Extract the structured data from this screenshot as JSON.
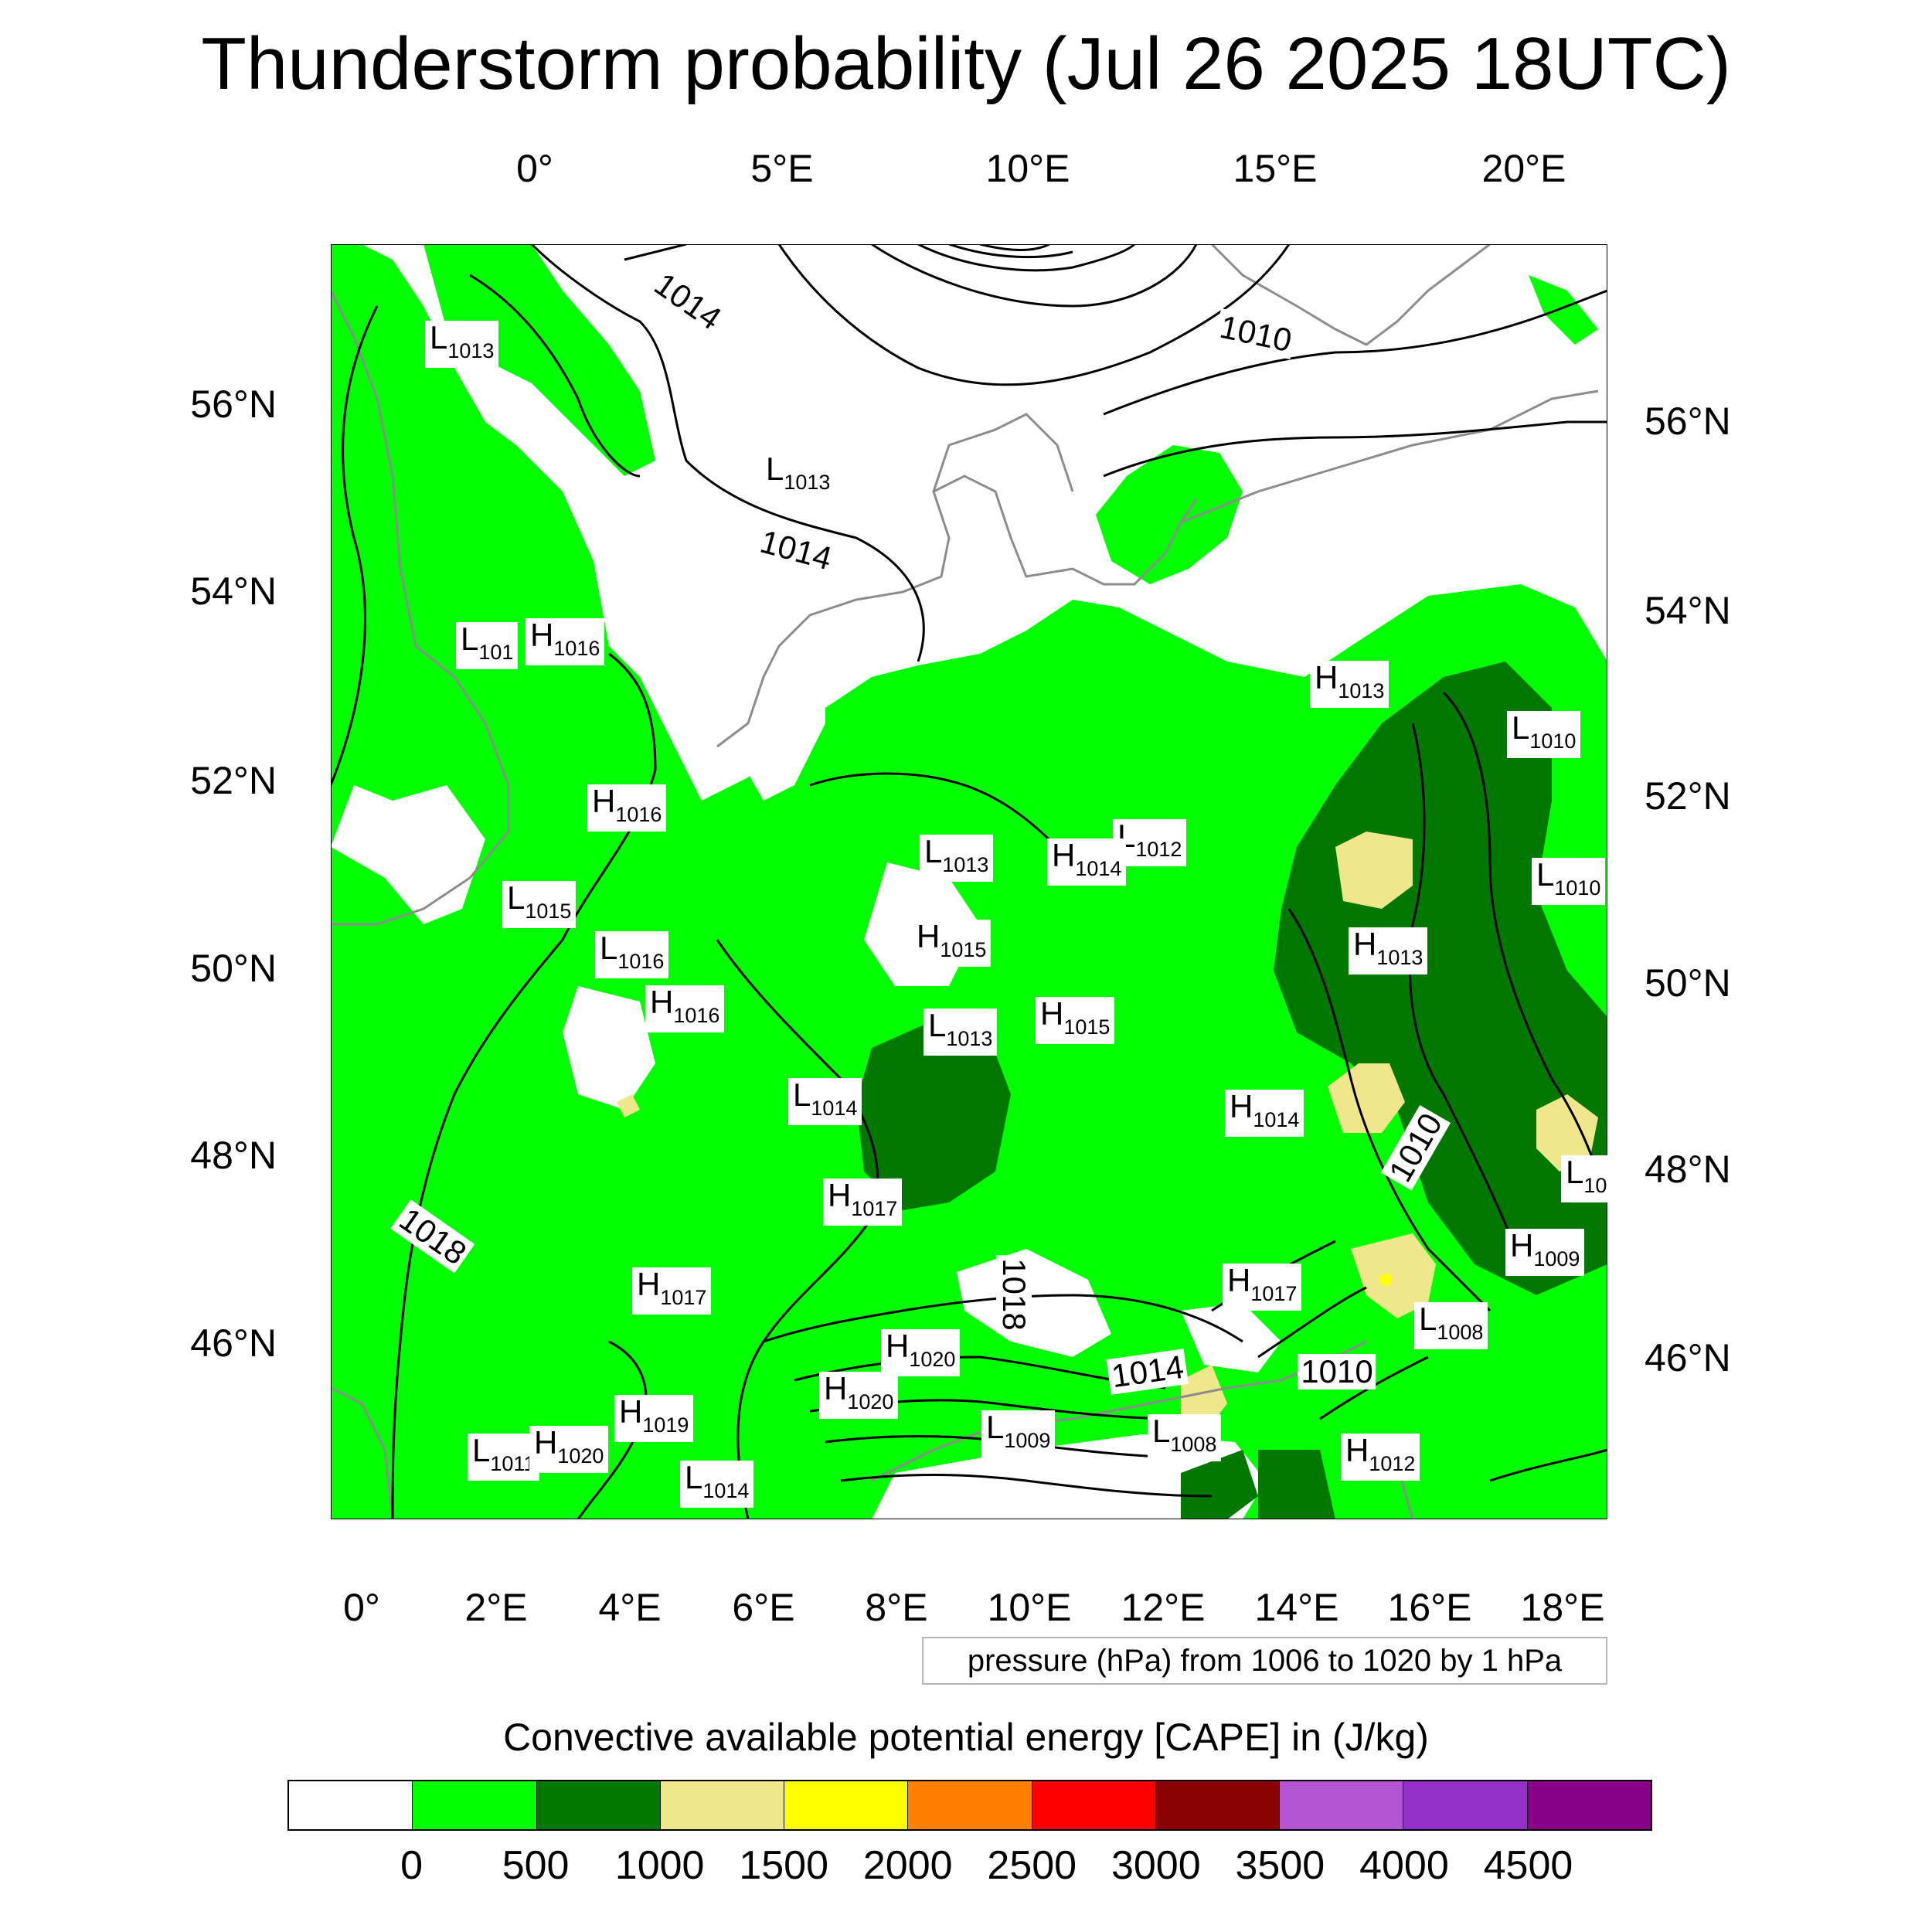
{
  "title": "Thunderstorm probability (Jul 26 2025 18UTC)",
  "axes": {
    "top_lon_labels": [
      "0°",
      "5°E",
      "10°E",
      "15°E",
      "20°E"
    ],
    "bottom_lon_labels": [
      "0°",
      "2°E",
      "4°E",
      "6°E",
      "8°E",
      "10°E",
      "12°E",
      "14°E",
      "16°E",
      "18°E"
    ],
    "left_lat_labels": [
      "56°N",
      "54°N",
      "52°N",
      "50°N",
      "48°N",
      "46°N"
    ],
    "right_lat_labels": [
      "56°N",
      "54°N",
      "52°N",
      "50°N",
      "48°N",
      "46°N"
    ]
  },
  "contour_info": "pressure (hPa) from 1006 to 1020 by 1 hPa",
  "colorbar": {
    "title": "Convective available potential energy [CAPE] in (J/kg)",
    "colors": [
      "#ffffff",
      "#00ff00",
      "#007800",
      "#f0e68c",
      "#ffff00",
      "#ff8000",
      "#ff0000",
      "#8b0000",
      "#b455d4",
      "#9430c8",
      "#880088"
    ],
    "tick_labels": [
      "0",
      "500",
      "1000",
      "1500",
      "2000",
      "2500",
      "3000",
      "3500",
      "4000",
      "4500"
    ]
  },
  "contour_labels": [
    "1014",
    "1010",
    "1014",
    "1018",
    "1018",
    "1010",
    "1014",
    "1010"
  ],
  "pressure_centers": [
    {
      "type": "L",
      "value": "1013"
    },
    {
      "type": "L",
      "value": "1013"
    },
    {
      "type": "L",
      "value": "101"
    },
    {
      "type": "H",
      "value": "1016"
    },
    {
      "type": "H",
      "value": "1013"
    },
    {
      "type": "L",
      "value": "1010"
    },
    {
      "type": "H",
      "value": "1016"
    },
    {
      "type": "L",
      "value": "1013"
    },
    {
      "type": "L",
      "value": "1012"
    },
    {
      "type": "H",
      "value": "1014"
    },
    {
      "type": "L",
      "value": "1010"
    },
    {
      "type": "L",
      "value": "1015"
    },
    {
      "type": "L",
      "value": "1016"
    },
    {
      "type": "H",
      "value": "1015"
    },
    {
      "type": "H",
      "value": "1013"
    },
    {
      "type": "H",
      "value": "1016"
    },
    {
      "type": "L",
      "value": "1013"
    },
    {
      "type": "H",
      "value": "1015"
    },
    {
      "type": "L",
      "value": "1014"
    },
    {
      "type": "H",
      "value": "1014"
    },
    {
      "type": "L",
      "value": "10"
    },
    {
      "type": "H",
      "value": "1017"
    },
    {
      "type": "H",
      "value": "1009"
    },
    {
      "type": "H",
      "value": "1017"
    },
    {
      "type": "H",
      "value": "1017"
    },
    {
      "type": "L",
      "value": "1008"
    },
    {
      "type": "H",
      "value": "1020"
    },
    {
      "type": "H",
      "value": "1020"
    },
    {
      "type": "H",
      "value": "1019"
    },
    {
      "type": "L",
      "value": "1009"
    },
    {
      "type": "L",
      "value": "1008"
    },
    {
      "type": "L",
      "value": "1011"
    },
    {
      "type": "H",
      "value": "1020"
    },
    {
      "type": "H",
      "value": "1012"
    },
    {
      "type": "L",
      "value": "1014"
    }
  ]
}
